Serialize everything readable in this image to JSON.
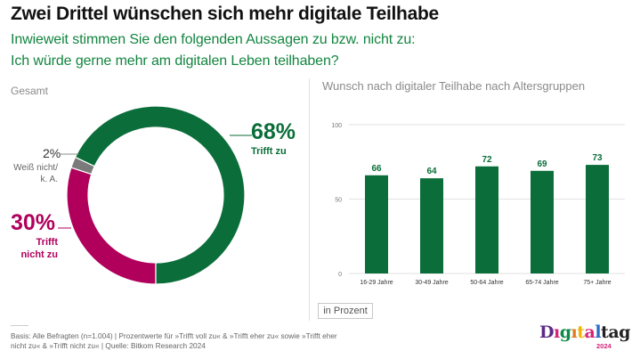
{
  "header": {
    "title": "Zwei Drittel wünschen sich mehr digitale Teilhabe",
    "subtitle_line1": "Inwieweit stimmen Sie den folgenden Aussagen zu bzw. nicht zu:",
    "subtitle_line2": "Ich würde gerne mehr am digitalen Leben teilhaben?"
  },
  "colors": {
    "green": "#0b6e3a",
    "magenta": "#b0005c",
    "gray": "#7a7a7a",
    "title_green": "#12853f"
  },
  "chart_data": [
    {
      "type": "pie",
      "variant": "donut",
      "title": "Gesamt",
      "slices": [
        {
          "label": "Trifft zu",
          "value": 68,
          "display": "68%",
          "color": "#0b6e3a"
        },
        {
          "label": "Trifft nicht zu",
          "value": 30,
          "display": "30%",
          "color": "#b0005c"
        },
        {
          "label": "Weiß nicht/ k. A.",
          "value": 2,
          "display": "2%",
          "color": "#7a7a7a"
        }
      ],
      "labels": {
        "agree_pct": "68%",
        "agree": "Trifft zu",
        "disagree_pct": "30%",
        "disagree_line1": "Trifft",
        "disagree_line2": "nicht zu",
        "unknown_pct": "2%",
        "unknown_line1": "Weiß nicht/",
        "unknown_line2": "k. A."
      }
    },
    {
      "type": "bar",
      "title": "Wunsch nach digitaler Teilhabe nach Altersgruppen",
      "categories": [
        "16-29 Jahre",
        "30-49 Jahre",
        "50-64 Jahre",
        "65-74 Jahre",
        "75+ Jahre"
      ],
      "values": [
        66,
        64,
        72,
        69,
        73
      ],
      "ylim": [
        0,
        100
      ],
      "yticks": [
        0,
        50,
        100
      ],
      "grid": true,
      "xlabel": "",
      "ylabel": "",
      "unit_label": "in Prozent",
      "color": "#0b6e3a"
    }
  ],
  "footer": {
    "note": "Basis: Alle Befragten (n=1.004) | Prozentwerte für »Trifft voll zu« & »Trifft eher zu« sowie »Trifft eher nicht zu« & »Trifft nicht zu« | Quelle: Bitkom Research 2024"
  },
  "logo": {
    "letters": [
      {
        "ch": "D",
        "color": "#5b2a86"
      },
      {
        "ch": "ı",
        "color": "#d6247a"
      },
      {
        "ch": "g",
        "color": "#0b8a4a"
      },
      {
        "ch": "ı",
        "color": "#e07a1f"
      },
      {
        "ch": "t",
        "color": "#f0b400"
      },
      {
        "ch": "a",
        "color": "#d6247a"
      },
      {
        "ch": "l",
        "color": "#2a6cc4"
      },
      {
        "ch": "t",
        "color": "#222222"
      },
      {
        "ch": "a",
        "color": "#222222"
      },
      {
        "ch": "g",
        "color": "#222222"
      }
    ],
    "year": "2024"
  }
}
